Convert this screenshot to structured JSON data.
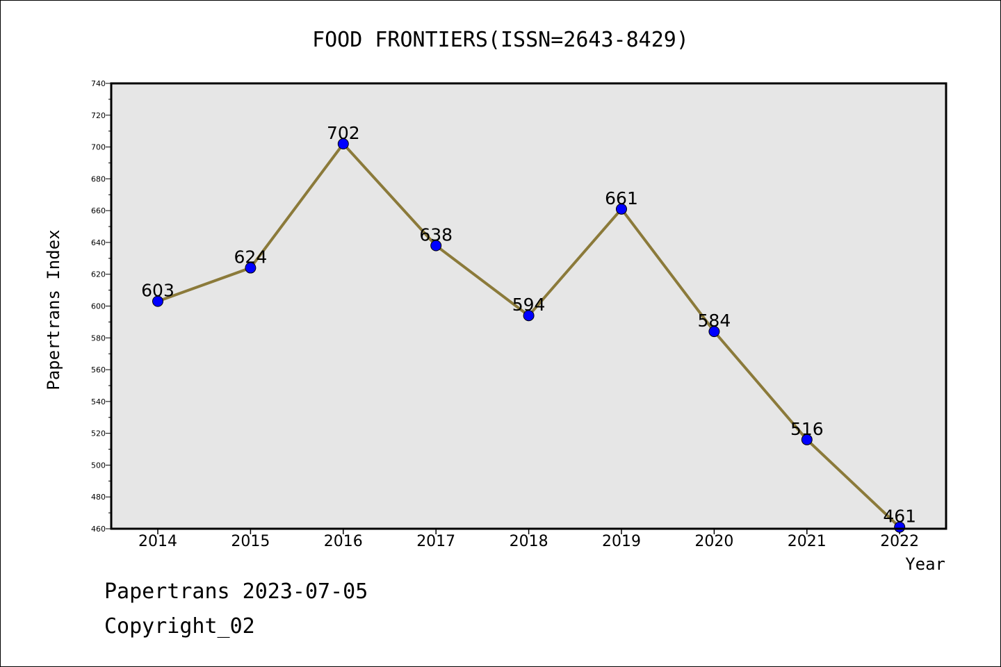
{
  "footer": {
    "line1": "Papertrans 2023-07-05",
    "line2": "Copyright_02"
  },
  "colors": {
    "line": "#8b7a3a",
    "marker": "#0000ff",
    "plot_background": "#e6e6e6"
  },
  "chart_data": {
    "type": "line",
    "title": "FOOD FRONTIERS(ISSN=2643-8429)",
    "xlabel": "Year",
    "ylabel": "Papertrans Index",
    "categories": [
      "2014",
      "2015",
      "2016",
      "2017",
      "2018",
      "2019",
      "2020",
      "2021",
      "2022"
    ],
    "series": [
      {
        "values": [
          603,
          624,
          702,
          638,
          594,
          661,
          584,
          516,
          461
        ]
      }
    ],
    "data_labels": [
      "603",
      "624",
      "702",
      "638",
      "594",
      "661",
      "584",
      "516",
      "461"
    ],
    "ylim": [
      460,
      740
    ],
    "yticks": [
      460,
      480,
      500,
      520,
      540,
      560,
      580,
      600,
      620,
      640,
      660,
      680,
      700,
      720,
      740
    ],
    "grid": false,
    "legend": "none"
  }
}
